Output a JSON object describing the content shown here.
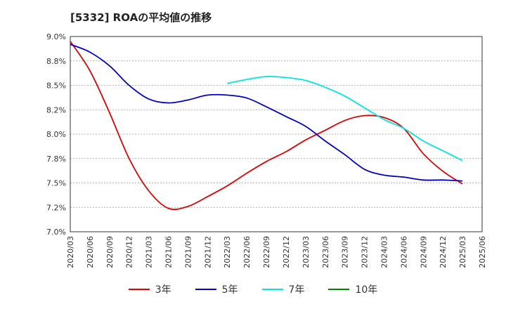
{
  "chart_data": {
    "type": "line",
    "title": "[5332]  ROAの平均値の推移",
    "xlabel": "",
    "ylabel": "",
    "ylim": [
      7.0,
      9.0
    ],
    "yticks": [
      "7.0%",
      "7.2%",
      "7.5%",
      "7.8%",
      "8.0%",
      "8.2%",
      "8.5%",
      "8.8%",
      "9.0%"
    ],
    "xticks": [
      "2020/03",
      "2020/06",
      "2020/09",
      "2020/12",
      "2021/03",
      "2021/06",
      "2021/09",
      "2021/12",
      "2022/03",
      "2022/06",
      "2022/09",
      "2022/12",
      "2023/03",
      "2023/06",
      "2023/09",
      "2023/12",
      "2024/03",
      "2024/06",
      "2024/09",
      "2024/12",
      "2025/03",
      "2025/06"
    ],
    "grid": true,
    "legend_position": "bottom",
    "series": [
      {
        "name": "3年",
        "color": "#e00000",
        "x": [
          "2020/03",
          "2020/06",
          "2020/09",
          "2020/12",
          "2021/03",
          "2021/06",
          "2021/09",
          "2021/12",
          "2022/03",
          "2022/06",
          "2022/09",
          "2022/12",
          "2023/03",
          "2023/06",
          "2023/09",
          "2023/12",
          "2024/03",
          "2024/06",
          "2024/09",
          "2024/12",
          "2025/03"
        ],
        "values": [
          8.95,
          8.65,
          8.22,
          7.75,
          7.42,
          7.24,
          7.26,
          7.36,
          7.47,
          7.6,
          7.72,
          7.82,
          7.94,
          8.04,
          8.14,
          8.19,
          8.17,
          8.06,
          7.8,
          7.62,
          7.49
        ]
      },
      {
        "name": "5年",
        "color": "#0000c8",
        "x": [
          "2020/03",
          "2020/06",
          "2020/09",
          "2020/12",
          "2021/03",
          "2021/06",
          "2021/09",
          "2021/12",
          "2022/03",
          "2022/06",
          "2022/09",
          "2022/12",
          "2023/03",
          "2023/06",
          "2023/09",
          "2023/12",
          "2024/03",
          "2024/06",
          "2024/09",
          "2024/12",
          "2025/03"
        ],
        "values": [
          8.92,
          8.84,
          8.7,
          8.5,
          8.36,
          8.32,
          8.35,
          8.4,
          8.4,
          8.37,
          8.28,
          8.18,
          8.08,
          7.93,
          7.79,
          7.64,
          7.58,
          7.56,
          7.53,
          7.53,
          7.52
        ]
      },
      {
        "name": "7年",
        "color": "#00e5e5",
        "x": [
          "2022/03",
          "2022/06",
          "2022/09",
          "2022/12",
          "2023/03",
          "2023/06",
          "2023/09",
          "2023/12",
          "2024/03",
          "2024/06",
          "2024/09",
          "2024/12",
          "2025/03"
        ],
        "values": [
          8.52,
          8.56,
          8.59,
          8.58,
          8.55,
          8.48,
          8.39,
          8.27,
          8.15,
          8.06,
          7.93,
          7.83,
          7.73
        ]
      },
      {
        "name": "10年",
        "color": "#008000",
        "x": [],
        "values": []
      }
    ]
  }
}
